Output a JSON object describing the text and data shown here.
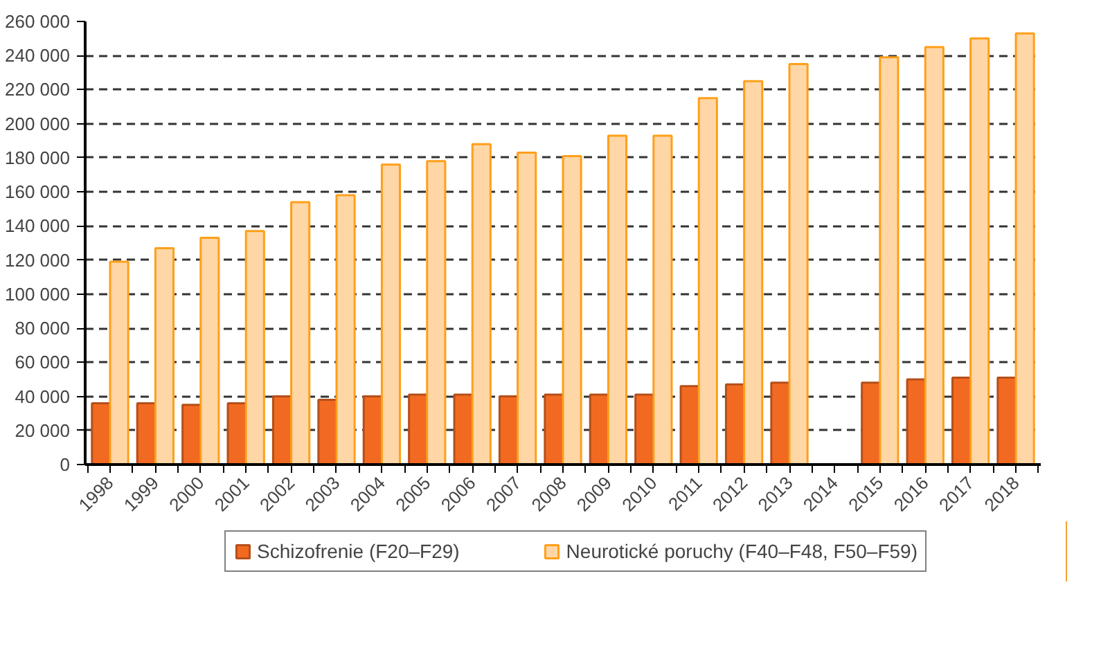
{
  "chart_data": {
    "type": "bar",
    "categories": [
      "1998",
      "1999",
      "2000",
      "2001",
      "2002",
      "2003",
      "2004",
      "2005",
      "2006",
      "2007",
      "2008",
      "2009",
      "2010",
      "2011",
      "2012",
      "2013",
      "2014",
      "2015",
      "2016",
      "2017",
      "2018"
    ],
    "series": [
      {
        "name": "Schizofrenie (F20–F29)",
        "color": "#f26a22",
        "values": [
          36000,
          36000,
          35000,
          36000,
          40000,
          38000,
          40000,
          41000,
          41000,
          40000,
          41000,
          41000,
          41000,
          46000,
          47000,
          48000,
          null,
          48000,
          50000,
          51000,
          51000
        ]
      },
      {
        "name": "Neurotické poruchy (F40–F48, F50–F59)",
        "color": "#ffd6a6",
        "values": [
          119000,
          127000,
          133000,
          137000,
          154000,
          158000,
          176000,
          178000,
          188000,
          183000,
          181000,
          193000,
          193000,
          215000,
          225000,
          235000,
          null,
          239000,
          245000,
          250000,
          253000
        ]
      }
    ],
    "ylim": [
      0,
      260000
    ],
    "yticks": [
      {
        "value": 0,
        "label": "0"
      },
      {
        "value": 20000,
        "label": "20 000"
      },
      {
        "value": 40000,
        "label": "40 000"
      },
      {
        "value": 60000,
        "label": "60 000"
      },
      {
        "value": 80000,
        "label": "80 000"
      },
      {
        "value": 100000,
        "label": "100 000"
      },
      {
        "value": 120000,
        "label": "120 000"
      },
      {
        "value": 140000,
        "label": "140 000"
      },
      {
        "value": 160000,
        "label": "160 000"
      },
      {
        "value": 180000,
        "label": "180 000"
      },
      {
        "value": 200000,
        "label": "200 000"
      },
      {
        "value": 220000,
        "label": "220 000"
      },
      {
        "value": 240000,
        "label": "240 000"
      },
      {
        "value": 260000,
        "label": "260 000"
      }
    ],
    "grid": "y",
    "legend": "bottom"
  }
}
